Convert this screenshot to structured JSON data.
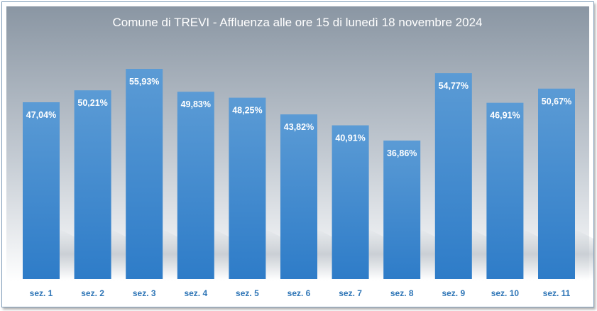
{
  "chart_data": {
    "type": "bar",
    "title": "Comune di TREVI - Affluenza alle ore 15 di lunedì 18 novembre 2024",
    "categories": [
      "sez. 1",
      "sez. 2",
      "sez. 3",
      "sez. 4",
      "sez. 5",
      "sez. 6",
      "sez. 7",
      "sez. 8",
      "sez. 9",
      "sez. 10",
      "sez. 11"
    ],
    "values": [
      47.04,
      50.21,
      55.93,
      49.83,
      48.25,
      43.82,
      40.91,
      36.86,
      54.77,
      46.91,
      50.67
    ],
    "value_labels": [
      "47,04%",
      "50,21%",
      "55,93%",
      "49,83%",
      "48,25%",
      "43,82%",
      "40,91%",
      "36,86%",
      "54,77%",
      "46,91%",
      "50,67%"
    ],
    "xlabel": "",
    "ylabel": "",
    "ylim": [
      0,
      58
    ],
    "grid": false,
    "legend": "none",
    "colors": {
      "bar_top": "#5b9bd5",
      "bar_bottom": "#2e7cc8",
      "background_top": "#8a96a3",
      "background_bottom": "#ffffff",
      "title_text": "#ffffff",
      "value_text": "#ffffff",
      "category_text": "#2e75b6"
    }
  }
}
